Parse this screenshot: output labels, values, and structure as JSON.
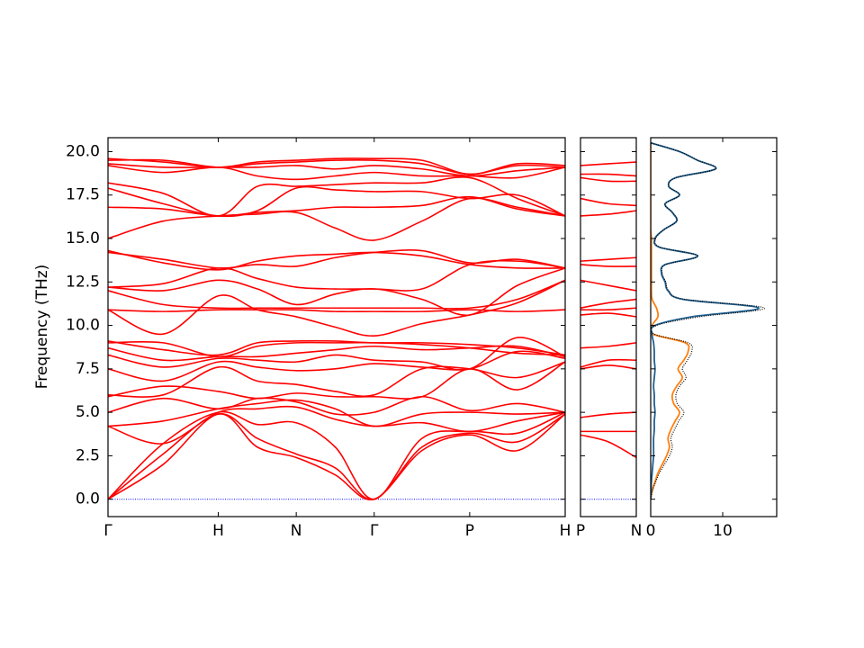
{
  "chart_data": [
    {
      "type": "line",
      "ylabel": "Frequency (THz)",
      "color": "#ff0000",
      "x": [
        0,
        0.5,
        1,
        1.354,
        1.707,
        2.061,
        2.414,
        2.847,
        3.28,
        3.713,
        4.146
      ],
      "xlim": [
        0,
        4.146
      ],
      "xticks": [
        {
          "value": 0,
          "label": "Γ"
        },
        {
          "value": 1,
          "label": "H"
        },
        {
          "value": 1.707,
          "label": "N"
        },
        {
          "value": 2.414,
          "label": "Γ"
        },
        {
          "value": 3.28,
          "label": "P"
        },
        {
          "value": 4.146,
          "label": "H"
        }
      ],
      "ylim": [
        -1.0,
        20.8
      ],
      "yticks": [
        {
          "value": 0,
          "label": "0.0"
        },
        2.5,
        {
          "value": 5,
          "label": "5.0"
        },
        7.5,
        {
          "value": 10,
          "label": "10.0"
        },
        12.5,
        {
          "value": 15,
          "label": "15.0"
        },
        17.5,
        {
          "value": 20,
          "label": "20.0"
        }
      ],
      "hlines": [
        {
          "y": 0,
          "color": "#0000ff"
        }
      ],
      "series": [
        {
          "values": [
            0,
            2.0,
            4.9,
            3.0,
            2.4,
            1.4,
            0,
            2.8,
            3.7,
            2.8,
            4.9
          ]
        },
        {
          "values": [
            0,
            2.6,
            4.9,
            3.5,
            2.6,
            1.8,
            0,
            3.0,
            3.8,
            3.3,
            4.9
          ]
        },
        {
          "values": [
            0,
            3.2,
            5.0,
            4.3,
            4.4,
            3.0,
            0,
            3.5,
            3.9,
            3.8,
            5.0
          ]
        },
        {
          "values": [
            4.2,
            3.2,
            5.0,
            5.2,
            5.3,
            4.6,
            4.2,
            4.4,
            3.9,
            4.5,
            5.0
          ]
        },
        {
          "values": [
            4.2,
            4.5,
            5.2,
            5.5,
            5.7,
            5.2,
            4.2,
            4.9,
            5.0,
            4.9,
            5.0
          ]
        },
        {
          "values": [
            5.0,
            5.8,
            5.2,
            5.8,
            5.6,
            4.9,
            5.0,
            5.9,
            5.1,
            5.5,
            5.0
          ]
        },
        {
          "values": [
            5.9,
            6.5,
            6.2,
            5.8,
            6.1,
            5.9,
            5.9,
            5.9,
            7.5,
            6.3,
            7.9
          ]
        },
        {
          "values": [
            6.0,
            6.0,
            7.6,
            6.8,
            6.6,
            6.2,
            6.0,
            7.5,
            7.5,
            7.0,
            7.9
          ]
        },
        {
          "values": [
            7.5,
            6.8,
            7.9,
            7.6,
            7.4,
            7.5,
            7.8,
            7.6,
            7.5,
            8.5,
            8.1
          ]
        },
        {
          "values": [
            8.3,
            7.6,
            8.1,
            8.0,
            7.9,
            8.3,
            8.0,
            7.9,
            7.5,
            9.3,
            8.2
          ]
        },
        {
          "values": [
            8.7,
            8.0,
            8.2,
            8.2,
            8.4,
            8.6,
            8.8,
            8.6,
            8.7,
            8.8,
            8.2
          ]
        },
        {
          "values": [
            9.0,
            9.0,
            8.2,
            8.8,
            9.0,
            9.0,
            9.0,
            8.9,
            8.7,
            8.4,
            8.3
          ]
        },
        {
          "values": [
            9.1,
            8.6,
            8.3,
            9.0,
            9.1,
            9.1,
            9.0,
            9.0,
            8.9,
            8.7,
            8.3
          ]
        },
        {
          "values": [
            10.9,
            9.5,
            11.7,
            10.9,
            10.5,
            9.9,
            9.4,
            10.1,
            10.6,
            11.3,
            12.6
          ]
        },
        {
          "values": [
            10.9,
            10.8,
            10.9,
            10.9,
            10.9,
            10.8,
            10.8,
            10.8,
            10.9,
            10.8,
            10.9
          ]
        },
        {
          "values": [
            12.0,
            11.2,
            11.0,
            11.0,
            11.0,
            11.0,
            11.0,
            11.0,
            11.0,
            11.5,
            12.6
          ]
        },
        {
          "values": [
            12.2,
            12.0,
            12.6,
            12.1,
            11.2,
            11.8,
            12.1,
            11.5,
            10.6,
            12.3,
            13.3
          ]
        },
        {
          "values": [
            12.2,
            12.4,
            13.3,
            12.7,
            12.2,
            12.1,
            12.1,
            12.1,
            13.5,
            13.7,
            13.3
          ]
        },
        {
          "values": [
            14.2,
            13.8,
            13.3,
            13.5,
            13.4,
            13.9,
            14.2,
            14.3,
            13.6,
            13.8,
            13.3
          ]
        },
        {
          "values": [
            14.3,
            13.6,
            13.2,
            13.7,
            14.0,
            14.1,
            14.2,
            14.0,
            13.5,
            13.3,
            13.3
          ]
        },
        {
          "values": [
            15.0,
            16.0,
            16.3,
            16.4,
            16.5,
            15.6,
            14.9,
            16.0,
            17.3,
            16.8,
            16.3
          ]
        },
        {
          "values": [
            16.8,
            16.7,
            16.3,
            16.5,
            16.6,
            16.8,
            16.8,
            16.9,
            17.4,
            16.7,
            16.3
          ]
        },
        {
          "values": [
            17.9,
            17.0,
            16.3,
            16.6,
            17.9,
            17.8,
            17.7,
            17.7,
            17.3,
            17.5,
            16.3
          ]
        },
        {
          "values": [
            18.2,
            17.6,
            16.3,
            18.0,
            18.0,
            18.1,
            18.2,
            18.2,
            18.5,
            17.3,
            16.3
          ]
        },
        {
          "values": [
            19.2,
            18.8,
            19.1,
            18.6,
            18.4,
            18.6,
            18.8,
            18.6,
            18.6,
            18.5,
            19.1
          ]
        },
        {
          "values": [
            19.3,
            19.1,
            19.1,
            19.1,
            19.2,
            19.0,
            19.2,
            19.0,
            18.6,
            18.9,
            19.1
          ]
        },
        {
          "values": [
            19.5,
            19.5,
            19.1,
            19.3,
            19.4,
            19.5,
            19.5,
            19.3,
            18.7,
            19.2,
            19.1
          ]
        },
        {
          "values": [
            19.6,
            19.4,
            19.1,
            19.4,
            19.5,
            19.6,
            19.6,
            19.5,
            18.7,
            19.3,
            19.2
          ]
        }
      ]
    },
    {
      "type": "line",
      "color": "#ff0000",
      "x": [
        0,
        0.25,
        0.5
      ],
      "xlim": [
        0,
        0.5
      ],
      "xticks": [
        {
          "value": 0,
          "label": "P"
        },
        {
          "value": 0.5,
          "label": "N"
        }
      ],
      "ylim": [
        -1.0,
        20.8
      ],
      "yticks": [
        0,
        2.5,
        5,
        7.5,
        10,
        12.5,
        15,
        17.5,
        20
      ],
      "hlines": [
        {
          "y": 0,
          "color": "#0000ff"
        }
      ],
      "series": [
        {
          "values": [
            3.7,
            3.3,
            2.4
          ]
        },
        {
          "values": [
            3.9,
            3.9,
            3.9
          ]
        },
        {
          "values": [
            4.7,
            4.9,
            5.0
          ]
        },
        {
          "values": [
            7.5,
            7.7,
            7.5
          ]
        },
        {
          "values": [
            7.6,
            8.0,
            8.0
          ]
        },
        {
          "values": [
            8.7,
            8.8,
            9.0
          ]
        },
        {
          "values": [
            10.6,
            10.7,
            10.5
          ]
        },
        {
          "values": [
            10.9,
            10.9,
            11.0
          ]
        },
        {
          "values": [
            11.0,
            11.3,
            11.5
          ]
        },
        {
          "values": [
            12.6,
            12.3,
            12.0
          ]
        },
        {
          "values": [
            13.5,
            13.4,
            13.4
          ]
        },
        {
          "values": [
            13.7,
            13.8,
            13.9
          ]
        },
        {
          "values": [
            16.3,
            16.4,
            16.6
          ]
        },
        {
          "values": [
            17.3,
            17.0,
            16.9
          ]
        },
        {
          "values": [
            18.5,
            18.3,
            18.3
          ]
        },
        {
          "values": [
            18.7,
            18.7,
            18.6
          ]
        },
        {
          "values": [
            19.2,
            19.3,
            19.4
          ]
        }
      ]
    },
    {
      "type": "line",
      "orientation": "horizontal",
      "y": [
        0,
        0.5,
        1,
        1.5,
        2,
        2.5,
        3,
        3.5,
        4,
        4.5,
        5,
        5.5,
        6,
        6.5,
        7,
        7.5,
        8,
        8.5,
        9,
        9.5,
        10,
        10.5,
        11,
        11.5,
        12,
        12.5,
        13,
        13.5,
        14,
        14.5,
        15,
        15.5,
        16,
        16.5,
        17,
        17.5,
        18,
        18.5,
        19,
        19.5,
        20,
        20.5
      ],
      "xlim": [
        0,
        17.5
      ],
      "xticks": [
        0,
        10
      ],
      "ylim": [
        -1.0,
        20.8
      ],
      "yticks": [
        0,
        2.5,
        5,
        7.5,
        10,
        12.5,
        15,
        17.5,
        20
      ],
      "series": [
        {
          "color": "#ff7f0e",
          "values": [
            0,
            0.2,
            0.6,
            1.0,
            1.6,
            2.2,
            2.6,
            2.4,
            2.8,
            3.4,
            4.0,
            3.2,
            3.0,
            3.6,
            4.4,
            3.8,
            4.6,
            5.2,
            4.8,
            0.3,
            0.2,
            1.0,
            0.8,
            0.2,
            0.1,
            0.1,
            0.1,
            0.1,
            0.1,
            0.1,
            0.1,
            0,
            0,
            0,
            0,
            0,
            0,
            0,
            0,
            0,
            0,
            0
          ]
        },
        {
          "color": "#1f5f8f",
          "values": [
            0,
            0.05,
            0.1,
            0.2,
            0.3,
            0.4,
            0.4,
            0.4,
            0.5,
            0.5,
            0.6,
            0.5,
            0.5,
            0.4,
            0.5,
            0.6,
            0.5,
            0.5,
            0.4,
            0.2,
            0.6,
            5.8,
            15.0,
            4.5,
            2.4,
            2.0,
            1.5,
            2.0,
            6.5,
            1.2,
            0.6,
            1.8,
            3.6,
            3.0,
            2.0,
            4.0,
            2.5,
            3.5,
            9.0,
            6.5,
            4.0,
            0
          ]
        },
        {
          "color": "#000000",
          "style": "dotted",
          "values": [
            0,
            0.25,
            0.7,
            1.2,
            1.9,
            2.6,
            3.0,
            2.8,
            3.3,
            3.9,
            4.6,
            3.7,
            3.5,
            4.0,
            4.9,
            4.4,
            5.1,
            5.7,
            5.2,
            0.5,
            0.8,
            6.8,
            15.8,
            4.7,
            2.5,
            2.1,
            1.6,
            2.1,
            6.6,
            1.3,
            0.7,
            1.8,
            3.6,
            3.0,
            2.0,
            4.0,
            2.5,
            3.5,
            9.0,
            6.5,
            4.0,
            0
          ]
        }
      ]
    }
  ]
}
